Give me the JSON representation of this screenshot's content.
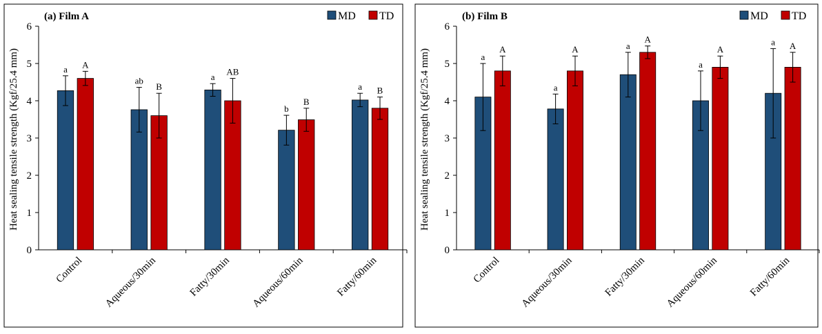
{
  "colors": {
    "MD": "#1f4e79",
    "TD": "#c00000"
  },
  "chart_data": [
    {
      "type": "bar",
      "title": "(a) Film A",
      "ylabel": "Heat sealing tensile strength (Kgf/25.4 mm)",
      "xlabel": "",
      "ylim": [
        0,
        6
      ],
      "yticks": [
        "0",
        "1",
        "2",
        "3",
        "4",
        "5",
        "6"
      ],
      "grid": false,
      "legend": "top-right",
      "categories": [
        "Control",
        "Aqueous/30min",
        "Fatty/30min",
        "Aqueous/60min",
        "Fatty/60min"
      ],
      "series": [
        {
          "name": "MD",
          "color": "#1f4e79",
          "values": [
            4.27,
            3.76,
            4.29,
            3.21,
            4.02
          ],
          "errors": [
            0.4,
            0.6,
            0.17,
            0.4,
            0.18
          ],
          "labels": [
            "a",
            "ab",
            "a",
            "b",
            "a"
          ]
        },
        {
          "name": "TD",
          "color": "#c00000",
          "values": [
            4.6,
            3.6,
            4.0,
            3.49,
            3.8
          ],
          "errors": [
            0.19,
            0.6,
            0.6,
            0.31,
            0.3
          ],
          "labels": [
            "A",
            "B",
            "AB",
            "B",
            "B"
          ]
        }
      ]
    },
    {
      "type": "bar",
      "title": "(b) Film B",
      "ylabel": "Heat sealing tensile strength (Kgf/25.4 mm)",
      "xlabel": "",
      "ylim": [
        0,
        6
      ],
      "yticks": [
        "0",
        "1",
        "2",
        "3",
        "4",
        "5",
        "6"
      ],
      "grid": false,
      "legend": "top-right",
      "categories": [
        "Control",
        "Aqueous/30min",
        "Fatty/30min",
        "Aqueous/60min",
        "Fatty/60min"
      ],
      "series": [
        {
          "name": "MD",
          "color": "#1f4e79",
          "values": [
            4.1,
            3.78,
            4.7,
            4.0,
            4.2
          ],
          "errors": [
            0.9,
            0.4,
            0.6,
            0.8,
            1.2
          ],
          "labels": [
            "a",
            "a",
            "a",
            "a",
            "a"
          ]
        },
        {
          "name": "TD",
          "color": "#c00000",
          "values": [
            4.8,
            4.8,
            5.3,
            4.9,
            4.9
          ],
          "errors": [
            0.4,
            0.4,
            0.17,
            0.3,
            0.4
          ],
          "labels": [
            "A",
            "A",
            "A",
            "A",
            "A"
          ]
        }
      ]
    }
  ]
}
